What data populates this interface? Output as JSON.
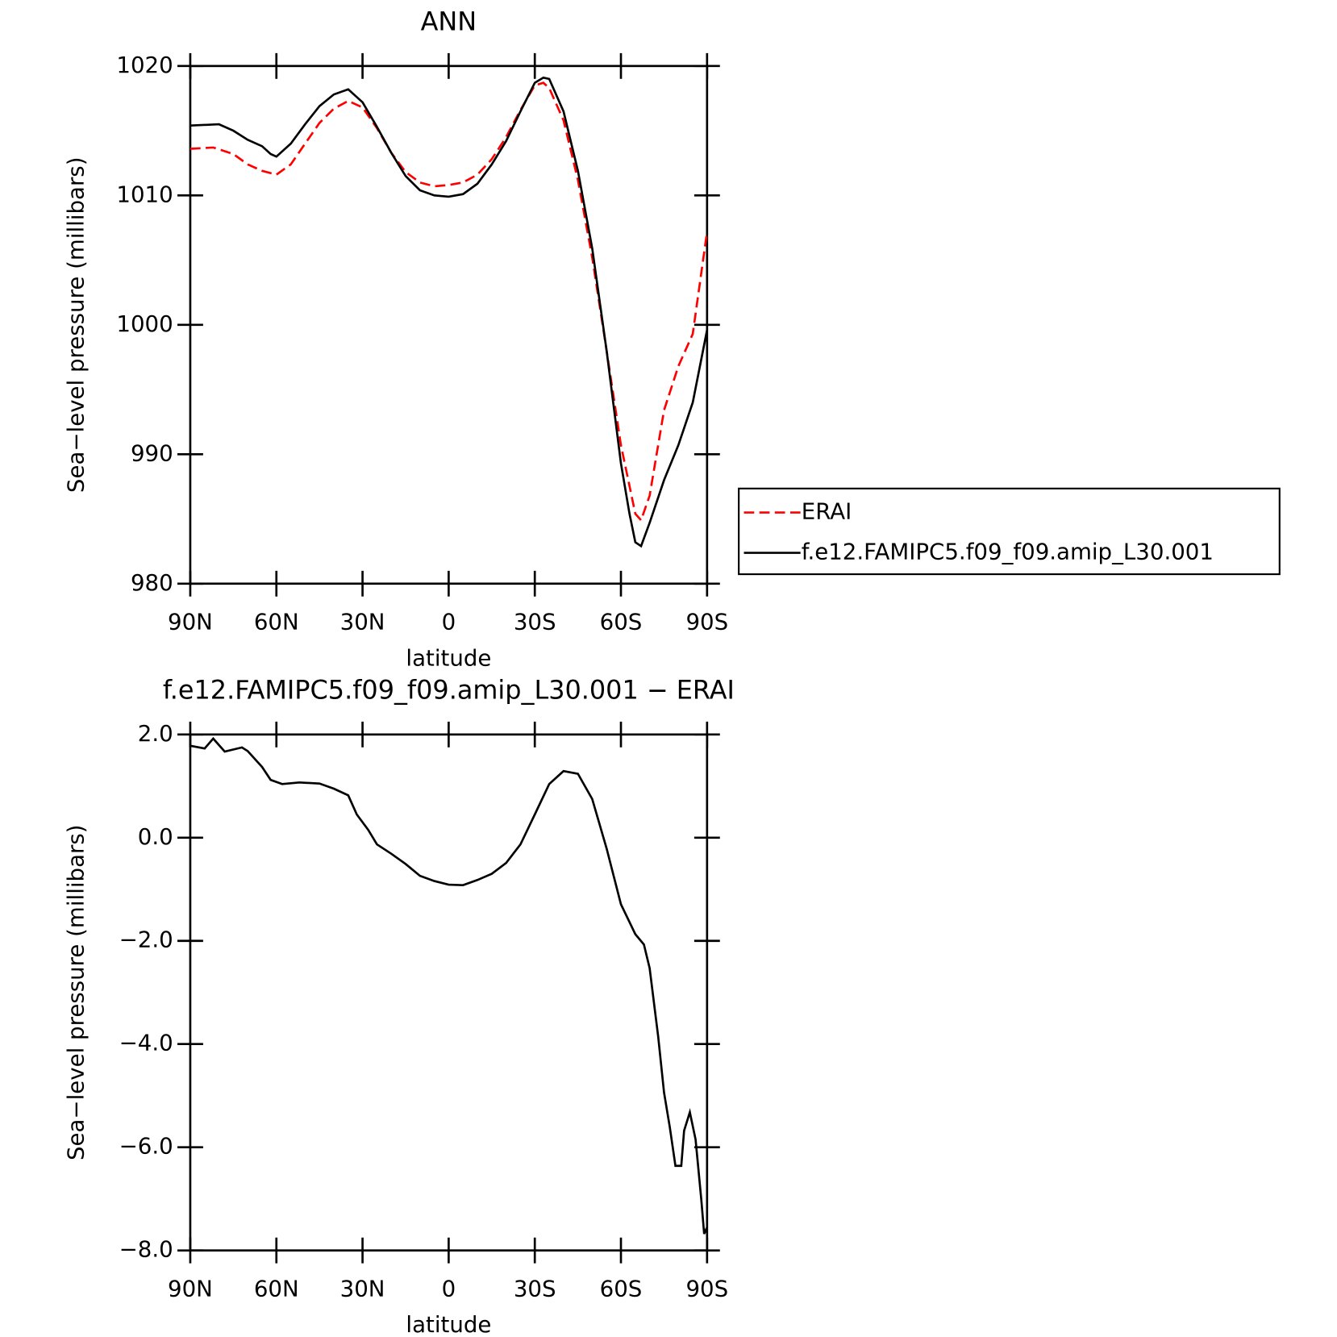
{
  "chart_data": [
    {
      "type": "line",
      "title": "ANN",
      "xlabel": "latitude",
      "ylabel": "Sea−level pressure (millibars)",
      "xlim": [
        90,
        -90
      ],
      "ylim": [
        980,
        1020
      ],
      "xticks": [
        {
          "value": 90,
          "label": "90N"
        },
        {
          "value": 60,
          "label": "60N"
        },
        {
          "value": 30,
          "label": "30N"
        },
        0,
        {
          "value": -30,
          "label": "30S"
        },
        {
          "value": -60,
          "label": "60S"
        },
        {
          "value": -90,
          "label": "90S"
        }
      ],
      "yticks": [
        980,
        990,
        1000,
        1010,
        1020
      ],
      "legend": "right",
      "series": [
        {
          "name": "ERAI",
          "color": "#ff0000",
          "linestyle": "dashed",
          "x": [
            90,
            82,
            75,
            70,
            65,
            60,
            55,
            50,
            45,
            40,
            35,
            30,
            25,
            20,
            15,
            10,
            5,
            0,
            -5,
            -10,
            -15,
            -20,
            -25,
            -30,
            -33,
            -35,
            -40,
            -45,
            -50,
            -55,
            -60,
            -65,
            -67,
            -70,
            -75,
            -80,
            -85,
            -90
          ],
          "values": [
            1013.6,
            1013.7,
            1013.2,
            1012.4,
            1011.9,
            1011.6,
            1012.4,
            1014.0,
            1015.6,
            1016.7,
            1017.3,
            1016.8,
            1015.2,
            1013.3,
            1011.8,
            1011.0,
            1010.7,
            1010.8,
            1011.0,
            1011.6,
            1012.8,
            1014.5,
            1016.6,
            1018.5,
            1018.7,
            1018.3,
            1015.8,
            1011.2,
            1005.2,
            998.0,
            990.7,
            985.4,
            984.9,
            986.8,
            993.4,
            996.8,
            999.3,
            1007.2
          ]
        },
        {
          "name": "f.e12.FAMIPC5.f09_f09.amip_L30.001",
          "color": "#000000",
          "linestyle": "solid",
          "x": [
            90,
            80,
            75,
            70,
            65,
            62,
            60,
            55,
            50,
            45,
            40,
            35,
            30,
            25,
            20,
            15,
            10,
            5,
            0,
            -5,
            -10,
            -15,
            -20,
            -25,
            -30,
            -33,
            -35,
            -40,
            -45,
            -50,
            -55,
            -60,
            -63,
            -65,
            -67,
            -70,
            -75,
            -80,
            -85,
            -90
          ],
          "values": [
            1015.4,
            1015.5,
            1015.0,
            1014.3,
            1013.8,
            1013.2,
            1013.0,
            1014.0,
            1015.5,
            1016.9,
            1017.8,
            1018.2,
            1017.2,
            1015.3,
            1013.3,
            1011.5,
            1010.4,
            1010.0,
            1009.9,
            1010.1,
            1010.9,
            1012.4,
            1014.2,
            1016.5,
            1018.7,
            1019.1,
            1019.0,
            1016.5,
            1011.9,
            1005.9,
            998.0,
            989.3,
            985.4,
            983.2,
            982.9,
            984.7,
            988.0,
            990.7,
            994.0,
            999.6
          ]
        }
      ]
    },
    {
      "type": "line",
      "title": "f.e12.FAMIPC5.f09_f09.amip_L30.001  −  ERAI",
      "xlabel": "latitude",
      "ylabel": "Sea−level pressure (millibars)",
      "xlim": [
        90,
        -90
      ],
      "ylim": [
        -8,
        2
      ],
      "xticks": [
        {
          "value": 90,
          "label": "90N"
        },
        {
          "value": 60,
          "label": "60N"
        },
        {
          "value": 30,
          "label": "30N"
        },
        0,
        {
          "value": -30,
          "label": "30S"
        },
        {
          "value": -60,
          "label": "60S"
        },
        {
          "value": -90,
          "label": "90S"
        }
      ],
      "yticks": [
        {
          "value": -8,
          "label": "−8.0"
        },
        {
          "value": -6,
          "label": "−6.0"
        },
        {
          "value": -4,
          "label": "−4.0"
        },
        {
          "value": -2,
          "label": "−2.0"
        },
        {
          "value": 0,
          "label": "0.0"
        },
        {
          "value": 2,
          "label": "2.0"
        }
      ],
      "series": [
        {
          "color": "#000000",
          "linestyle": "solid",
          "x": [
            90,
            85,
            82,
            78,
            72,
            70,
            65,
            62,
            58,
            52,
            45,
            40,
            35,
            32,
            28,
            25,
            20,
            15,
            10,
            5,
            0,
            -5,
            -10,
            -15,
            -20,
            -25,
            -30,
            -35,
            -40,
            -45,
            -50,
            -55,
            -60,
            -65,
            -68,
            -70,
            -73,
            -75,
            -77,
            -79,
            -81,
            -82,
            -84,
            -86,
            -88,
            -89,
            -90
          ],
          "values": [
            1.78,
            1.73,
            1.92,
            1.67,
            1.75,
            1.68,
            1.37,
            1.12,
            1.04,
            1.07,
            1.05,
            0.95,
            0.82,
            0.45,
            0.15,
            -0.13,
            -0.31,
            -0.51,
            -0.74,
            -0.84,
            -0.91,
            -0.92,
            -0.82,
            -0.7,
            -0.49,
            -0.13,
            0.45,
            1.04,
            1.29,
            1.24,
            0.75,
            -0.21,
            -1.29,
            -1.87,
            -2.07,
            -2.53,
            -3.86,
            -4.94,
            -5.61,
            -6.36,
            -6.36,
            -5.68,
            -5.32,
            -5.85,
            -7.02,
            -7.68,
            -7.55
          ]
        }
      ]
    }
  ]
}
